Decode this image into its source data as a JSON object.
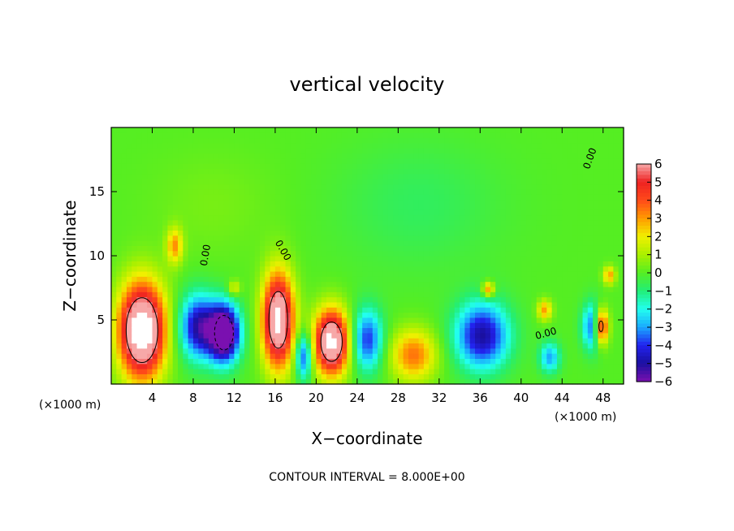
{
  "chart_data": {
    "type": "heatmap",
    "title": "vertical velocity",
    "xlabel": "X−coordinate",
    "ylabel": "Z−coordinate",
    "x_unit_left": "(×1000 m)",
    "x_unit_right": "(×1000 m)",
    "footer": "CONTOUR INTERVAL = 8.000E+00",
    "xlim": [
      0,
      50
    ],
    "ylim": [
      0,
      20
    ],
    "x_ticks": [
      4,
      8,
      12,
      16,
      20,
      24,
      28,
      32,
      36,
      40,
      44,
      48
    ],
    "y_ticks": [
      5,
      10,
      15
    ],
    "colorbar": {
      "range": [
        -6,
        6
      ],
      "ticks": [
        6,
        5,
        4,
        3,
        2,
        1,
        0,
        -1,
        -2,
        -3,
        -4,
        -5,
        -6
      ],
      "tick_labels": [
        "6",
        "5",
        "4",
        "3",
        "2",
        "1",
        "0",
        "−1",
        "−2",
        "−3",
        "−4",
        "−5",
        "−6"
      ],
      "stops": [
        {
          "value": 6,
          "color": "#f7a8a8"
        },
        {
          "value": 5,
          "color": "#ee2222"
        },
        {
          "value": 4,
          "color": "#ff4a1a"
        },
        {
          "value": 3,
          "color": "#ff9a00"
        },
        {
          "value": 2,
          "color": "#f0f000"
        },
        {
          "value": 1,
          "color": "#aaf000"
        },
        {
          "value": 0,
          "color": "#55ee22"
        },
        {
          "value": -1,
          "color": "#22ee77"
        },
        {
          "value": -2,
          "color": "#22ffee"
        },
        {
          "value": -3,
          "color": "#1aaaff"
        },
        {
          "value": -4,
          "color": "#2222ee"
        },
        {
          "value": -5,
          "color": "#1a10a0"
        },
        {
          "value": -6,
          "color": "#7a10b0"
        }
      ]
    },
    "contour_labels": [
      {
        "text": "0.00",
        "x": 9.5,
        "z": 10.0,
        "angle": -80
      },
      {
        "text": "0.00",
        "x": 16.5,
        "z": 10.3,
        "angle": 60
      },
      {
        "text": "0.00",
        "x": 42.5,
        "z": 3.7,
        "angle": -15
      },
      {
        "text": "0.00",
        "x": 47.0,
        "z": 17.5,
        "angle": -70
      }
    ],
    "features": [
      {
        "x": 3.0,
        "z": 4.2,
        "sx": 2.2,
        "sz": 3.6,
        "w": 9
      },
      {
        "x": 6.2,
        "z": 10.8,
        "sx": 0.8,
        "sz": 1.4,
        "w": 3
      },
      {
        "x": 8.5,
        "z": 4.5,
        "sx": 1.8,
        "sz": 2.5,
        "w": -5
      },
      {
        "x": 11.0,
        "z": 4.0,
        "sx": 1.5,
        "sz": 2.2,
        "w": -8
      },
      {
        "x": 12.0,
        "z": 7.5,
        "sx": 0.6,
        "sz": 0.6,
        "w": 2
      },
      {
        "x": 16.3,
        "z": 5.0,
        "sx": 1.5,
        "sz": 3.6,
        "w": 8
      },
      {
        "x": 18.8,
        "z": 2.2,
        "sx": 0.8,
        "sz": 1.8,
        "w": -4
      },
      {
        "x": 21.5,
        "z": 3.3,
        "sx": 1.7,
        "sz": 2.5,
        "w": 8
      },
      {
        "x": 25.0,
        "z": 3.5,
        "sx": 1.5,
        "sz": 2.4,
        "w": -4
      },
      {
        "x": 29.5,
        "z": 2.3,
        "sx": 2.2,
        "sz": 2.0,
        "w": 3.5
      },
      {
        "x": 36.2,
        "z": 3.8,
        "sx": 2.6,
        "sz": 2.6,
        "w": -5
      },
      {
        "x": 36.8,
        "z": 7.4,
        "sx": 0.6,
        "sz": 0.6,
        "w": 3.5
      },
      {
        "x": 42.3,
        "z": 5.8,
        "sx": 0.7,
        "sz": 0.8,
        "w": 3
      },
      {
        "x": 42.8,
        "z": 2.1,
        "sx": 1.0,
        "sz": 1.2,
        "w": -3
      },
      {
        "x": 47.0,
        "z": 4.5,
        "sx": 1.0,
        "sz": 1.8,
        "w": -4
      },
      {
        "x": 47.8,
        "z": 4.5,
        "sx": 0.7,
        "sz": 1.4,
        "w": 6
      },
      {
        "x": 48.6,
        "z": 8.5,
        "sx": 0.6,
        "sz": 0.7,
        "w": 3
      },
      {
        "x": 30.0,
        "z": 14.0,
        "sx": 8.0,
        "sz": 5.0,
        "w": -0.7
      },
      {
        "x": 10.0,
        "z": 14.0,
        "sx": 6.0,
        "sz": 4.0,
        "w": 0.4
      }
    ]
  }
}
